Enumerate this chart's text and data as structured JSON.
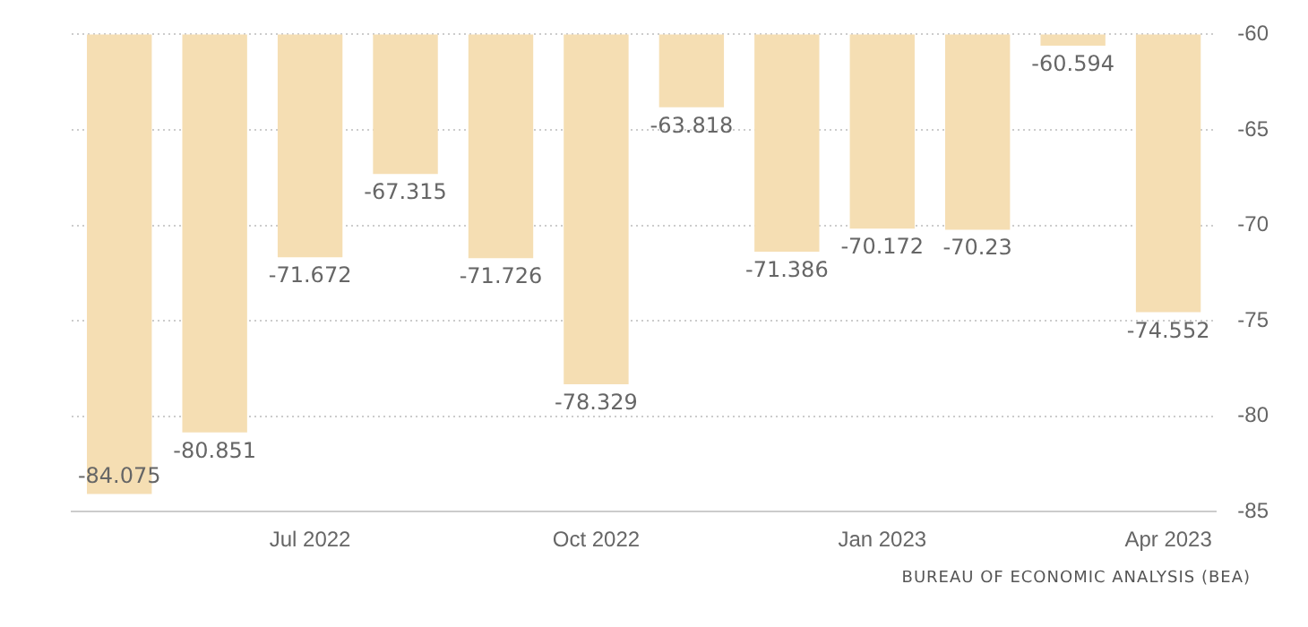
{
  "chart_data": {
    "type": "bar",
    "categories": [
      null,
      null,
      "Jul 2022",
      null,
      null,
      "Oct 2022",
      null,
      null,
      "Jan 2023",
      null,
      null,
      "Apr 2023"
    ],
    "values": [
      -84.075,
      -80.851,
      -71.672,
      -67.315,
      -71.726,
      -78.329,
      -63.818,
      -71.386,
      -70.172,
      -70.23,
      -60.594,
      -74.552
    ],
    "color": "#f5deb3",
    "ylim": [
      -85,
      -60
    ],
    "yticks": [
      -85,
      -80,
      -75,
      -70,
      -65,
      -60
    ],
    "grid": "y",
    "legend": false,
    "data_labels": true,
    "annotations": [
      "BUREAU OF ECONOMIC ANALYSIS (BEA)"
    ]
  }
}
